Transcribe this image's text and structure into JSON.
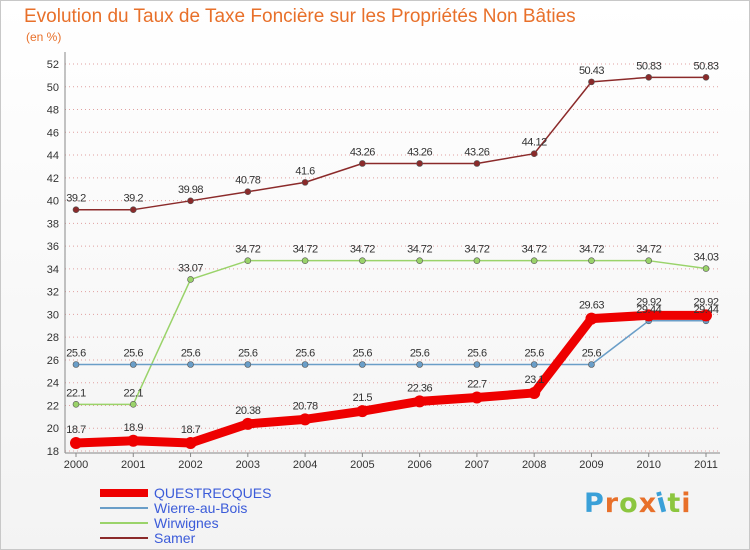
{
  "title": "Evolution du Taux de Taxe Foncière sur les Propriétés Non Bâties",
  "unit_label": "(en %)",
  "logo": {
    "text": "Proxiti",
    "letter_colors": [
      "#3aa0d8",
      "#e8702a",
      "#8cc63f",
      "#e8702a",
      "#3aa0d8",
      "#8cc63f",
      "#e8702a"
    ]
  },
  "colors": {
    "grid": "#e0a0a0",
    "axis": "#888888",
    "tick_text": "#333333",
    "value_text": "#333333"
  },
  "chart_data": {
    "type": "line",
    "x": [
      "2000",
      "2001",
      "2002",
      "2003",
      "2004",
      "2005",
      "2006",
      "2007",
      "2008",
      "2009",
      "2010",
      "2011"
    ],
    "ylim": [
      18,
      52
    ],
    "yticks": [
      18,
      20,
      22,
      24,
      26,
      28,
      30,
      32,
      34,
      36,
      38,
      40,
      42,
      44,
      46,
      48,
      50,
      52
    ],
    "grid": "horizontal dotted",
    "legend_position": "bottom-left",
    "series": [
      {
        "name": "QUESTRECQUES",
        "color": "#ee0000",
        "values": [
          18.7,
          18.9,
          18.7,
          20.38,
          20.78,
          21.5,
          22.36,
          22.7,
          23.1,
          29.63,
          29.92,
          29.92
        ],
        "labels": [
          "18.7",
          "18.9",
          "18.7",
          "20.38",
          "20.78",
          "21.5",
          "22.36",
          "22.7",
          "23.1",
          "29.63",
          "29.92",
          "29.92"
        ]
      },
      {
        "name": "Wierre-au-Bois",
        "color": "#6a9ec8",
        "values": [
          25.6,
          25.6,
          25.6,
          25.6,
          25.6,
          25.6,
          25.6,
          25.6,
          25.6,
          25.6,
          29.44,
          29.44
        ],
        "labels": [
          "25.6",
          "25.6",
          "25.6",
          "25.6",
          "25.6",
          "25.6",
          "25.6",
          "25.6",
          "25.6",
          "25.6",
          "29.44",
          "29.44"
        ]
      },
      {
        "name": "Wirwignes",
        "color": "#9ad36a",
        "values": [
          22.1,
          22.1,
          33.07,
          34.72,
          34.72,
          34.72,
          34.72,
          34.72,
          34.72,
          34.72,
          34.72,
          34.03
        ],
        "labels": [
          "22.1",
          "22.1",
          "33.07",
          "34.72",
          "34.72",
          "34.72",
          "34.72",
          "34.72",
          "34.72",
          "34.72",
          "34.72",
          "34.03"
        ]
      },
      {
        "name": "Samer",
        "color": "#8b2a2a",
        "values": [
          39.2,
          39.2,
          39.98,
          40.78,
          41.6,
          43.26,
          43.26,
          43.26,
          44.12,
          50.43,
          50.83,
          50.83
        ],
        "labels": [
          "39.2",
          "39.2",
          "39.98",
          "40.78",
          "41.6",
          "43.26",
          "43.26",
          "43.26",
          "44.12",
          "50.43",
          "50.83",
          "50.83"
        ]
      }
    ]
  }
}
